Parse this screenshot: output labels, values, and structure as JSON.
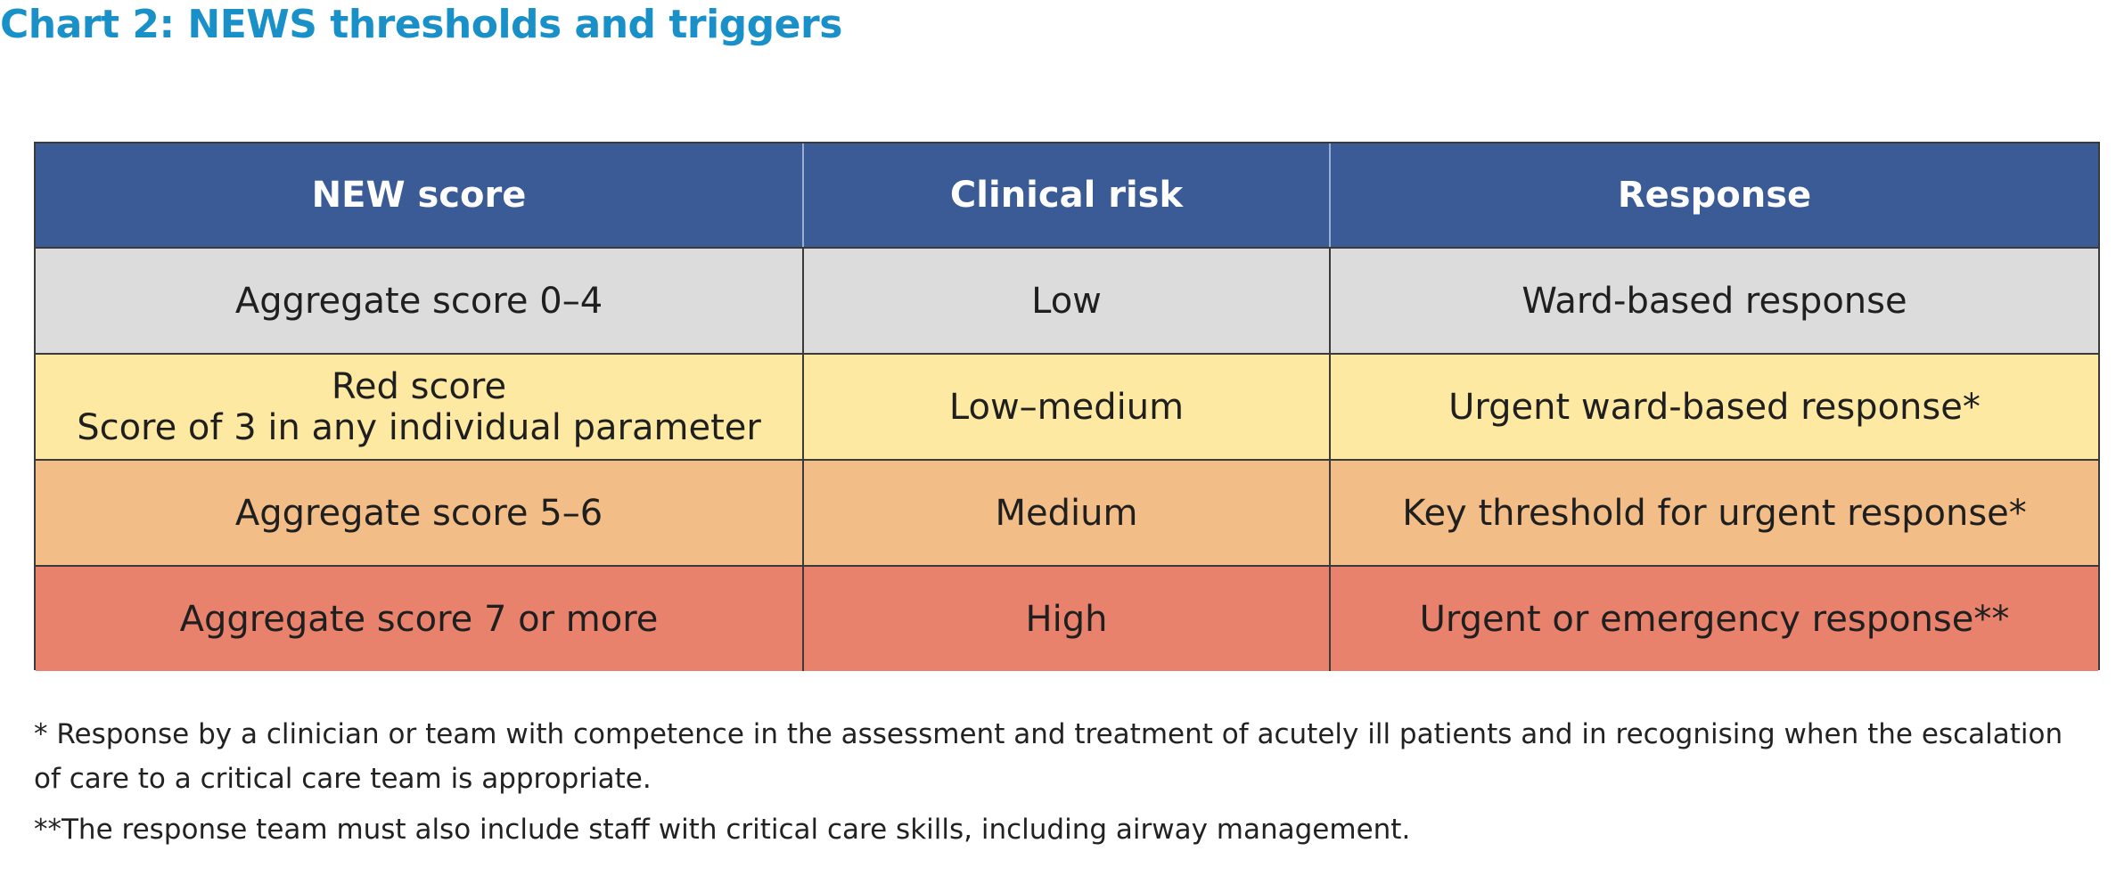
{
  "title": "Chart 2: NEWS thresholds and triggers",
  "table": {
    "headers": [
      "NEW score",
      "Clinical risk",
      "Response"
    ],
    "rows": [
      {
        "score_lines": [
          "Aggregate score 0–4"
        ],
        "risk": "Low",
        "response": "Ward-based response",
        "color": "#dcdcdc"
      },
      {
        "score_lines": [
          "Red score",
          "Score of 3 in any individual parameter"
        ],
        "risk": "Low–medium",
        "response": "Urgent ward-based response*",
        "color": "#fde9a2"
      },
      {
        "score_lines": [
          "Aggregate score 5–6"
        ],
        "risk": "Medium",
        "response": "Key threshold for urgent response*",
        "color": "#f2bd87"
      },
      {
        "score_lines": [
          "Aggregate score 7 or more"
        ],
        "risk": "High",
        "response": "Urgent or emergency response**",
        "color": "#e8826c"
      }
    ],
    "header_color": "#3b5b97"
  },
  "footnotes": [
    "* Response by a clinician or team with competence in the assessment and treatment of acutely ill patients and in recognising when the escalation of care to a critical care team is appropriate.",
    "**The response team must also include staff with critical care skills, including airway management."
  ],
  "colors": {
    "title": "#1a90c8"
  }
}
